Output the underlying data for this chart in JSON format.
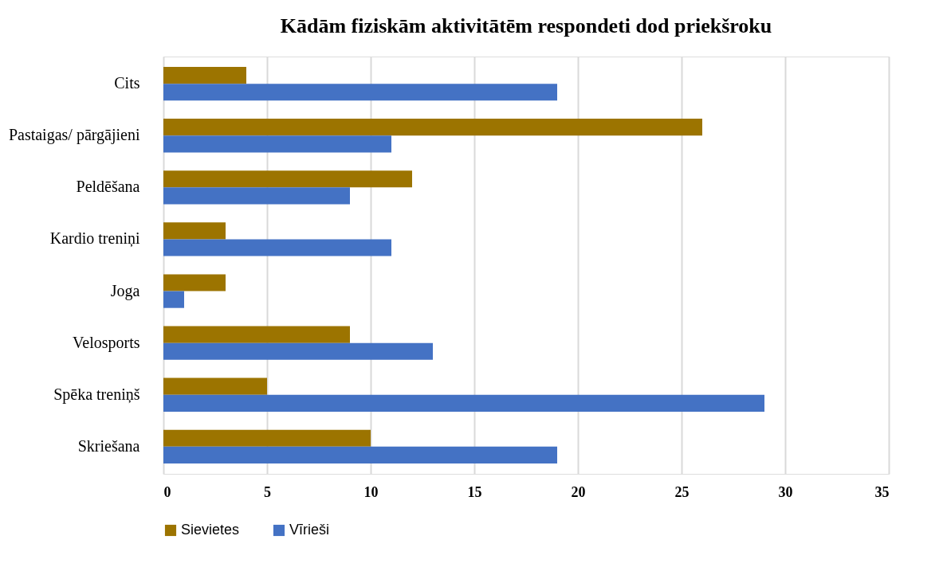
{
  "chart_data": {
    "type": "bar",
    "orientation": "horizontal",
    "title": "Kādām fiziskām  aktivitātēm respondeti dod priekšroku",
    "categories": [
      "Cits",
      "Pastaigas/ pārgājieni",
      "Peldēšana",
      "Kardio treniņi",
      "Joga",
      "Velosports",
      "Spēka treniņš",
      "Skriešana"
    ],
    "series": [
      {
        "name": "Sievietes",
        "color": "#9c7400",
        "values": [
          4,
          26,
          12,
          3,
          3,
          9,
          5,
          10
        ]
      },
      {
        "name": "Vīrieši",
        "color": "#4472c4",
        "values": [
          19,
          11,
          9,
          11,
          1,
          13,
          29,
          19
        ]
      }
    ],
    "xlim": [
      0,
      35
    ],
    "xticks": [
      0,
      5,
      10,
      15,
      20,
      25,
      30,
      35
    ],
    "grid": "x",
    "legend": "bottom"
  }
}
